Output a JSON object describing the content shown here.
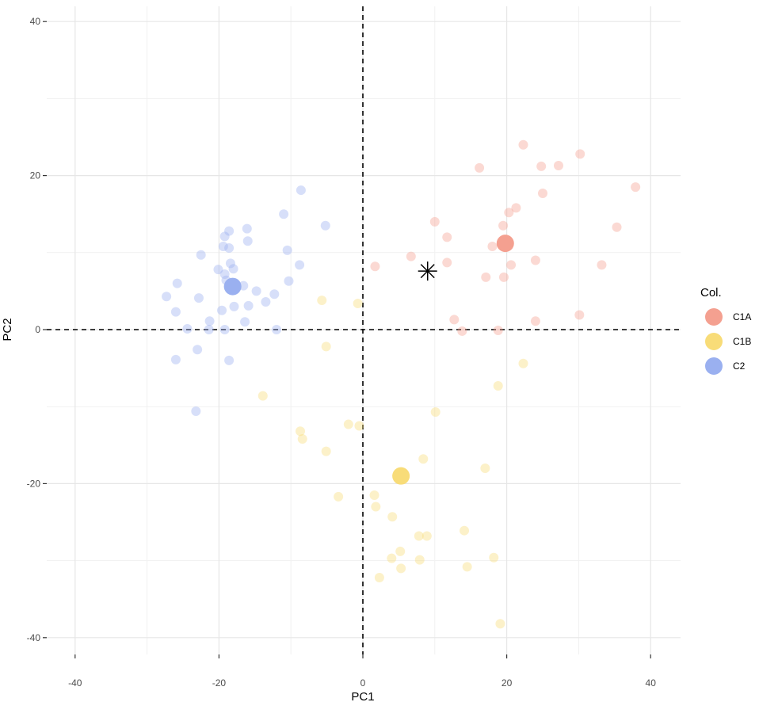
{
  "chart_data": {
    "type": "scatter",
    "xlabel": "PC1",
    "ylabel": "PC2",
    "xlim": [
      -45,
      44
    ],
    "ylim": [
      -42,
      42
    ],
    "x_ticks": [
      -40,
      -20,
      0,
      20,
      40
    ],
    "y_ticks": [
      -40,
      -20,
      0,
      20,
      40
    ],
    "grid": true,
    "reference_lines": {
      "x": 0,
      "y": 0,
      "style": "dashed"
    },
    "legend": {
      "title": "Col.",
      "placement": "right",
      "entries": [
        {
          "name": "C1A",
          "color": "#f4a090"
        },
        {
          "name": "C1B",
          "color": "#f8dc78"
        },
        {
          "name": "C2",
          "color": "#9ab0f0"
        }
      ]
    },
    "series": [
      {
        "name": "C1A",
        "color": "#f4a090",
        "centroid": [
          19.8,
          11.2
        ],
        "points": [
          [
            22.3,
            24.0
          ],
          [
            30.2,
            22.8
          ],
          [
            16.2,
            21.0
          ],
          [
            24.8,
            21.2
          ],
          [
            27.2,
            21.3
          ],
          [
            37.9,
            18.5
          ],
          [
            25.0,
            17.7
          ],
          [
            21.3,
            15.8
          ],
          [
            10.0,
            14.0
          ],
          [
            20.3,
            15.2
          ],
          [
            19.5,
            13.5
          ],
          [
            35.3,
            13.3
          ],
          [
            11.7,
            12.0
          ],
          [
            18.0,
            10.8
          ],
          [
            24.0,
            9.0
          ],
          [
            11.7,
            8.7
          ],
          [
            20.6,
            8.4
          ],
          [
            33.2,
            8.4
          ],
          [
            6.7,
            9.5
          ],
          [
            1.7,
            8.2
          ],
          [
            17.1,
            6.8
          ],
          [
            19.6,
            6.8
          ],
          [
            30.1,
            1.9
          ],
          [
            24.0,
            1.1
          ],
          [
            12.7,
            1.3
          ],
          [
            13.8,
            -0.2
          ],
          [
            18.8,
            -0.1
          ]
        ]
      },
      {
        "name": "C1B",
        "color": "#f8dc78",
        "centroid": [
          5.3,
          -19.0
        ],
        "points": [
          [
            -5.7,
            3.8
          ],
          [
            -0.7,
            3.4
          ],
          [
            -5.1,
            -2.2
          ],
          [
            22.3,
            -4.4
          ],
          [
            18.8,
            -7.3
          ],
          [
            -13.9,
            -8.6
          ],
          [
            10.1,
            -10.7
          ],
          [
            -2.0,
            -12.3
          ],
          [
            -0.5,
            -12.5
          ],
          [
            -8.7,
            -13.2
          ],
          [
            -8.4,
            -14.2
          ],
          [
            -5.1,
            -15.8
          ],
          [
            8.4,
            -16.8
          ],
          [
            17.0,
            -18.0
          ],
          [
            1.6,
            -21.5
          ],
          [
            -3.4,
            -21.7
          ],
          [
            1.8,
            -23.0
          ],
          [
            4.1,
            -24.3
          ],
          [
            14.1,
            -26.1
          ],
          [
            7.8,
            -26.8
          ],
          [
            8.9,
            -26.8
          ],
          [
            5.2,
            -28.8
          ],
          [
            18.2,
            -29.6
          ],
          [
            4.0,
            -29.7
          ],
          [
            7.9,
            -29.9
          ],
          [
            14.5,
            -30.8
          ],
          [
            5.3,
            -31.0
          ],
          [
            2.3,
            -32.2
          ],
          [
            19.1,
            -38.2
          ]
        ]
      },
      {
        "name": "C2",
        "color": "#9ab0f0",
        "centroid": [
          -18.1,
          5.6
        ],
        "points": [
          [
            -8.6,
            18.1
          ],
          [
            -11.0,
            15.0
          ],
          [
            -16.1,
            13.1
          ],
          [
            -18.6,
            12.8
          ],
          [
            -5.2,
            13.5
          ],
          [
            -19.2,
            12.1
          ],
          [
            -16.0,
            11.5
          ],
          [
            -19.4,
            10.8
          ],
          [
            -18.6,
            10.6
          ],
          [
            -10.5,
            10.3
          ],
          [
            -22.5,
            9.7
          ],
          [
            -18.4,
            8.6
          ],
          [
            -8.8,
            8.4
          ],
          [
            -20.1,
            7.8
          ],
          [
            -18.0,
            7.9
          ],
          [
            -19.2,
            7.2
          ],
          [
            -19.0,
            6.4
          ],
          [
            -10.3,
            6.3
          ],
          [
            -25.8,
            6.0
          ],
          [
            -16.6,
            5.7
          ],
          [
            -14.8,
            5.0
          ],
          [
            -12.3,
            4.6
          ],
          [
            -27.3,
            4.3
          ],
          [
            -22.8,
            4.1
          ],
          [
            -13.5,
            3.6
          ],
          [
            -15.9,
            3.1
          ],
          [
            -17.9,
            3.0
          ],
          [
            -26.0,
            2.3
          ],
          [
            -19.6,
            2.5
          ],
          [
            -21.3,
            1.1
          ],
          [
            -16.4,
            1.0
          ],
          [
            -24.4,
            0.1
          ],
          [
            -21.4,
            0.0
          ],
          [
            -19.2,
            0.0
          ],
          [
            -12.0,
            0.0
          ],
          [
            -26.0,
            -3.9
          ],
          [
            -18.6,
            -4.0
          ],
          [
            -23.0,
            -2.6
          ],
          [
            -23.2,
            -10.6
          ]
        ]
      }
    ],
    "annotations": [
      {
        "symbol": "asterisk",
        "x": 9.0,
        "y": 7.6
      }
    ]
  }
}
